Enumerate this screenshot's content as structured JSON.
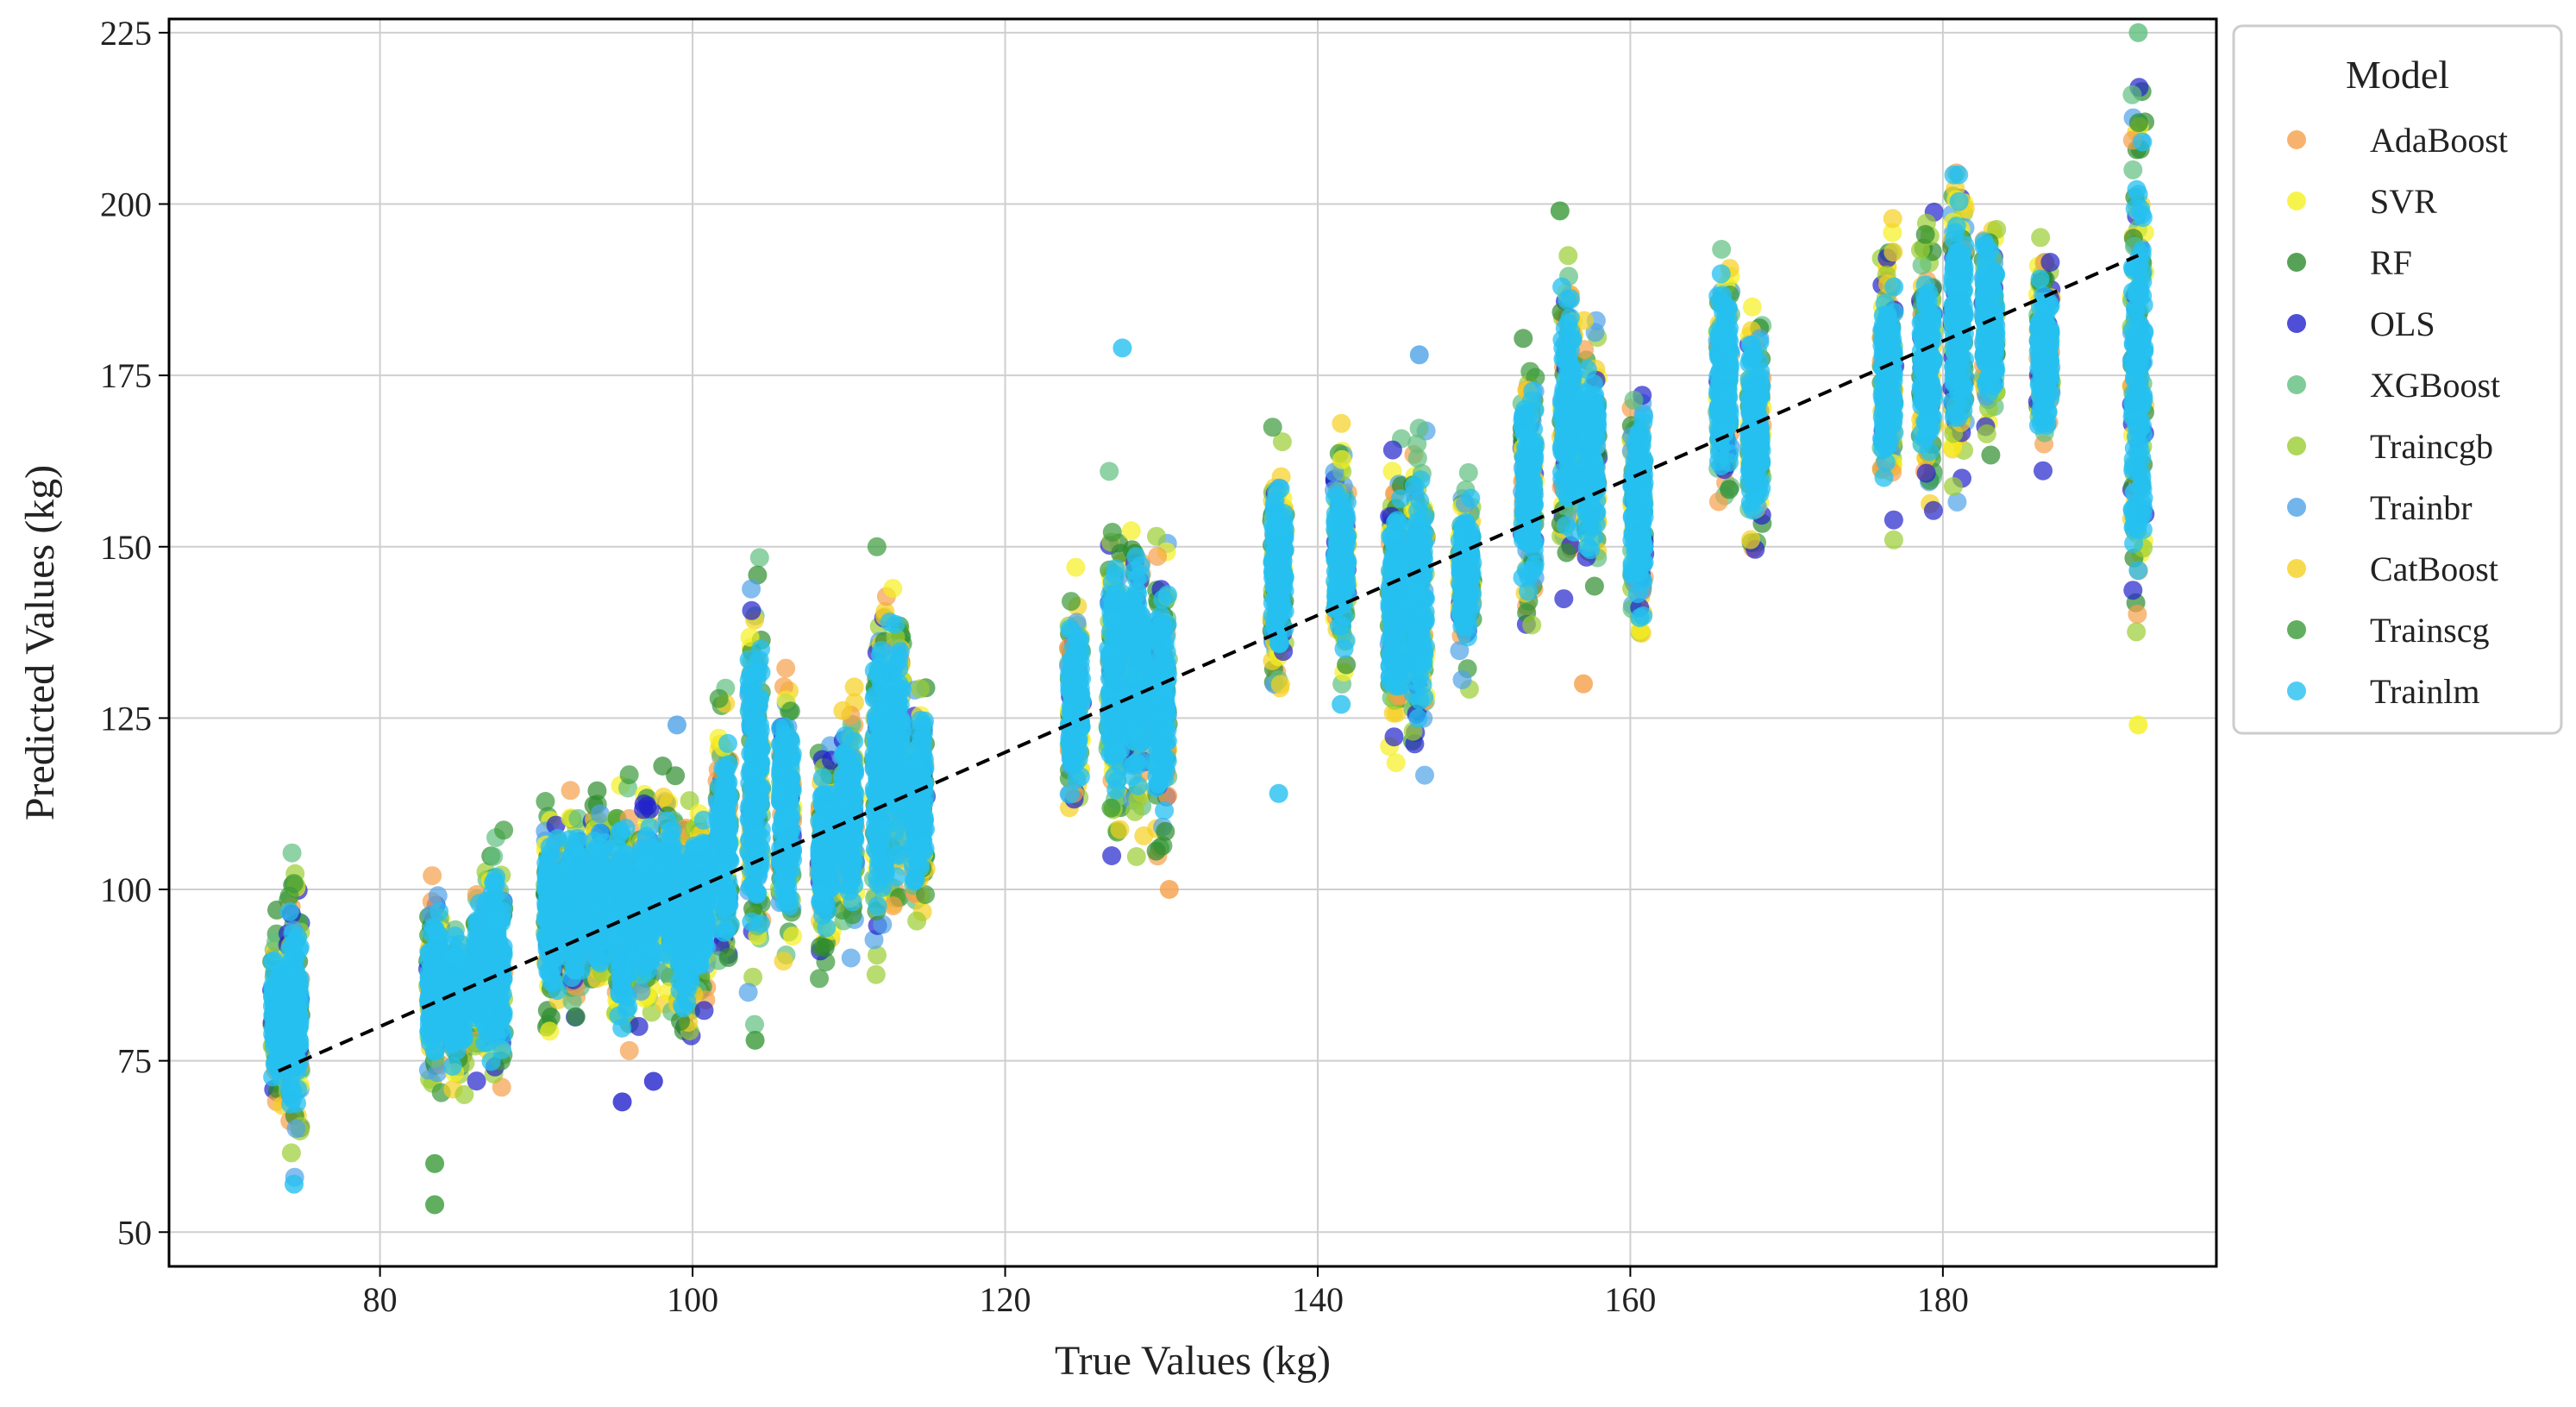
{
  "chart_data": {
    "type": "scatter",
    "title": "",
    "xlabel": "True Values (kg)",
    "ylabel": "Predicted Values (kg)",
    "xlim": [
      66.5,
      197.5
    ],
    "ylim": [
      45,
      227
    ],
    "xticks": [
      80,
      100,
      120,
      140,
      160,
      180
    ],
    "yticks": [
      50,
      75,
      100,
      125,
      150,
      175,
      200,
      225
    ],
    "grid": true,
    "legend_title": "Model",
    "legend_position": "outside-right-top",
    "reference_line": {
      "style": "dashed",
      "color": "#000000",
      "from": [
        73.5,
        73.5
      ],
      "to": [
        192.5,
        192.5
      ]
    },
    "true_values": [
      73.5,
      74.5,
      83.5,
      85,
      86.5,
      87.5,
      91,
      92.5,
      94,
      95.5,
      97,
      98.5,
      99.5,
      100.5,
      102,
      104,
      106,
      108.5,
      110,
      112,
      113,
      114.5,
      124.5,
      127,
      128.5,
      130,
      137.5,
      141.5,
      145,
      146.5,
      149.5,
      153.5,
      156,
      157.5,
      160.5,
      166,
      168,
      176.5,
      179,
      181,
      183,
      186.5,
      192.5
    ],
    "predicted_ranges": [
      [
        66,
        97
      ],
      [
        58,
        106
      ],
      [
        70,
        102
      ],
      [
        68,
        100
      ],
      [
        70,
        104
      ],
      [
        68,
        110
      ],
      [
        77,
        115
      ],
      [
        80,
        115
      ],
      [
        79,
        118
      ],
      [
        73,
        118
      ],
      [
        80,
        115
      ],
      [
        82,
        118
      ],
      [
        75,
        114
      ],
      [
        80,
        116
      ],
      [
        84,
        130
      ],
      [
        80,
        153
      ],
      [
        87,
        135
      ],
      [
        87,
        125
      ],
      [
        90,
        130
      ],
      [
        84,
        150
      ],
      [
        92,
        151
      ],
      [
        92,
        133
      ],
      [
        107,
        147
      ],
      [
        102,
        161
      ],
      [
        104,
        158
      ],
      [
        101,
        153
      ],
      [
        126,
        168
      ],
      [
        128,
        168
      ],
      [
        116,
        167
      ],
      [
        114,
        170
      ],
      [
        129,
        163
      ],
      [
        135,
        183
      ],
      [
        141,
        198
      ],
      [
        142,
        183
      ],
      [
        133,
        178
      ],
      [
        150,
        198
      ],
      [
        145,
        188
      ],
      [
        151,
        199
      ],
      [
        153,
        200
      ],
      [
        156,
        212
      ],
      [
        162,
        204
      ],
      [
        160,
        196
      ],
      [
        127,
        225
      ]
    ],
    "series": [
      {
        "name": "AdaBoost",
        "color": "#f5a04a"
      },
      {
        "name": "SVR",
        "color": "#f5f020"
      },
      {
        "name": "RF",
        "color": "#2e8b2e"
      },
      {
        "name": "OLS",
        "color": "#2222cc"
      },
      {
        "name": "XGBoost",
        "color": "#5fbf7f"
      },
      {
        "name": "Traincgb",
        "color": "#9acd32"
      },
      {
        "name": "Trainbr",
        "color": "#4fa3e8"
      },
      {
        "name": "CatBoost",
        "color": "#f5d020"
      },
      {
        "name": "Trainscg",
        "color": "#3a9a3a"
      },
      {
        "name": "Trainlm",
        "color": "#25c0f0"
      }
    ],
    "outliers": [
      {
        "series": "Trainlm",
        "x": 127.5,
        "y": 179
      },
      {
        "series": "Trainlm",
        "x": 137.5,
        "y": 114
      },
      {
        "series": "Trainscg",
        "x": 83.5,
        "y": 60
      },
      {
        "series": "Trainscg",
        "x": 83.5,
        "y": 54
      },
      {
        "series": "Trainlm",
        "x": 74.5,
        "y": 57
      },
      {
        "series": "SVR",
        "x": 192.5,
        "y": 124
      },
      {
        "series": "XGBoost",
        "x": 192.5,
        "y": 225
      },
      {
        "series": "AdaBoost",
        "x": 130.5,
        "y": 100
      },
      {
        "series": "AdaBoost",
        "x": 157,
        "y": 130
      },
      {
        "series": "OLS",
        "x": 95.5,
        "y": 69
      },
      {
        "series": "OLS",
        "x": 97.5,
        "y": 72
      },
      {
        "series": "Trainscg",
        "x": 104,
        "y": 78
      },
      {
        "series": "Trainbr",
        "x": 99,
        "y": 124
      },
      {
        "series": "Trainbr",
        "x": 146.5,
        "y": 178
      },
      {
        "series": "Trainlm",
        "x": 141.5,
        "y": 127
      },
      {
        "series": "Trainscg",
        "x": 155.5,
        "y": 199
      }
    ]
  }
}
